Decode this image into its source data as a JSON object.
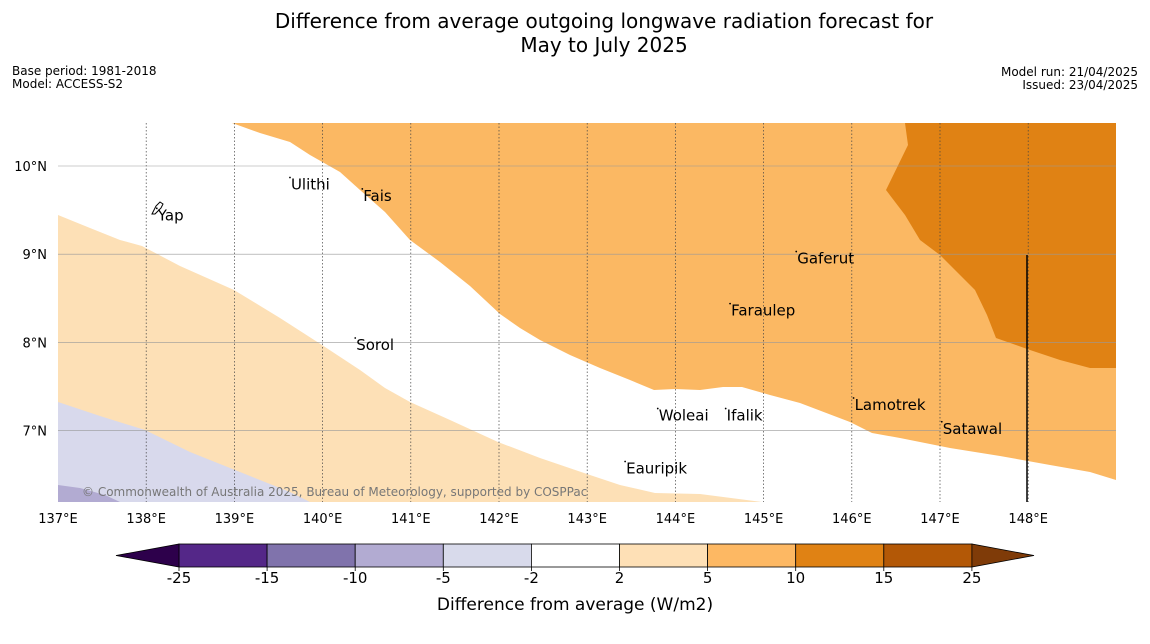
{
  "header": {
    "title_line1": "Difference from average outgoing longwave radiation forecast for",
    "title_line2": "May to July 2025",
    "base_period": "Base period: 1981-2018",
    "model": "Model: ACCESS-S2",
    "model_run": "Model run: 21/04/2025",
    "issued": "Issued: 23/04/2025"
  },
  "map": {
    "lon_range": [
      137,
      149
    ],
    "lat_range": [
      6.2,
      10.5
    ],
    "lon_ticks": [
      "137°E",
      "138°E",
      "139°E",
      "140°E",
      "141°E",
      "142°E",
      "143°E",
      "144°E",
      "145°E",
      "146°E",
      "147°E",
      "148°E"
    ],
    "lat_ticks": [
      "10°N",
      "9°N",
      "8°N",
      "7°N"
    ],
    "places": [
      {
        "name": "Yap",
        "lon": 138.12,
        "lat": 9.52
      },
      {
        "name": "Ulithi",
        "lon": 139.63,
        "lat": 9.87
      },
      {
        "name": "Fais",
        "lon": 140.45,
        "lat": 9.74
      },
      {
        "name": "Gaferut",
        "lon": 145.37,
        "lat": 9.03
      },
      {
        "name": "Faraulep",
        "lon": 144.62,
        "lat": 8.44
      },
      {
        "name": "Sorol",
        "lon": 140.37,
        "lat": 8.05
      },
      {
        "name": "Lamotrek",
        "lon": 146.02,
        "lat": 7.37
      },
      {
        "name": "Woleai",
        "lon": 143.8,
        "lat": 7.25
      },
      {
        "name": "Ifalik",
        "lon": 144.57,
        "lat": 7.25
      },
      {
        "name": "Satawal",
        "lon": 147.02,
        "lat": 7.1
      },
      {
        "name": "Eauripik",
        "lon": 143.43,
        "lat": 6.65
      }
    ],
    "copyright": "© Commonwealth of Australia 2025, Bureau of Meteorology, supported by COSPPac",
    "colors": {
      "band_2_5": "#fde0b6",
      "band_5_10": "#fbb863",
      "band_10_15": "#e08214",
      "band_neg5_neg2": "#d8d9ec",
      "band_neg10_neg5": "#b2abd2"
    }
  },
  "colorbar": {
    "label": "Difference from average (W/m2)",
    "ticks": [
      "-25",
      "-15",
      "-10",
      "-5",
      "-2",
      "2",
      "5",
      "10",
      "15",
      "25"
    ],
    "colors": [
      "#542788",
      "#8073ac",
      "#b2abd2",
      "#d8daeb",
      "#ffffff",
      "#fee0b6",
      "#fdb863",
      "#e08214",
      "#b35806"
    ],
    "extend_low": "#2d004b",
    "extend_high": "#7f3b08"
  }
}
